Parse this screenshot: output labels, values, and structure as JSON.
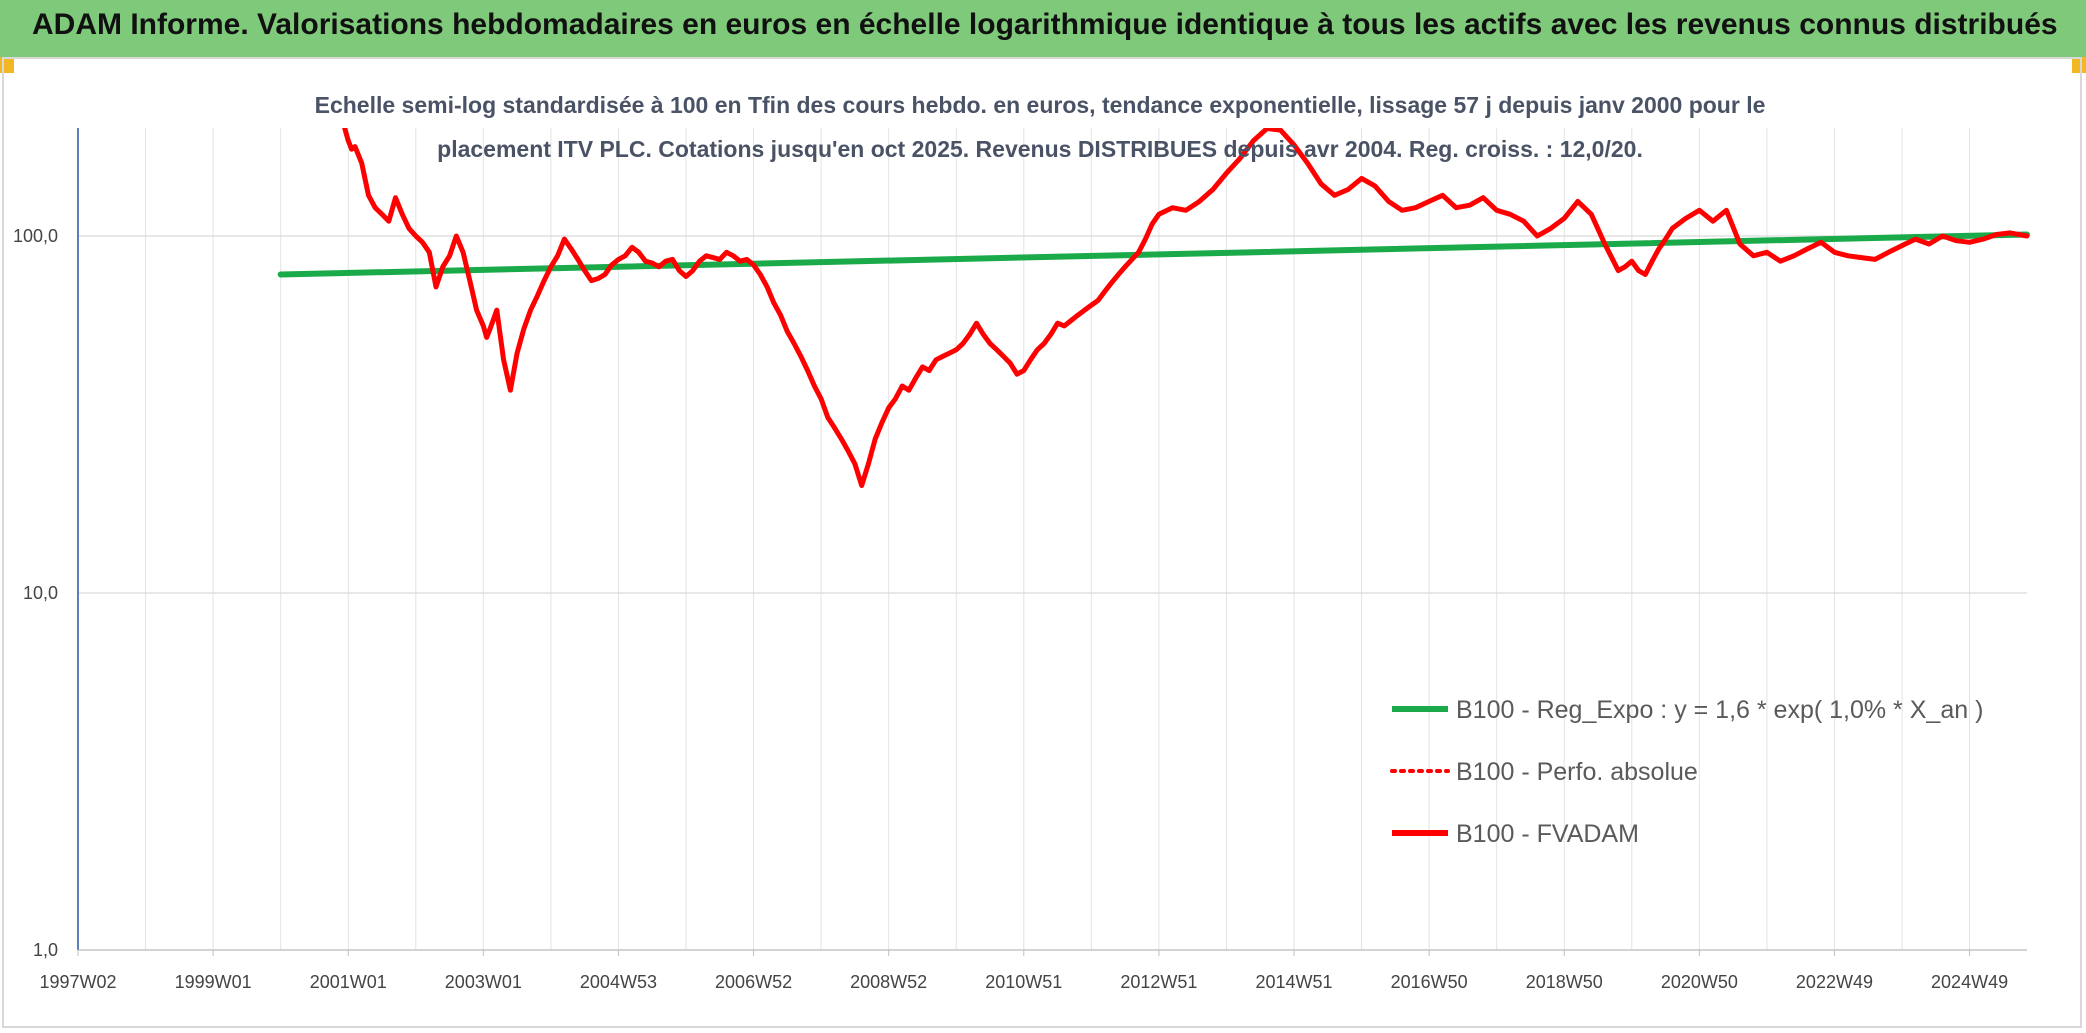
{
  "banner": {
    "title": "ADAM Informe. Valorisations hebdomadaires en euros en échelle logarithmique identique à tous les actifs avec les revenus connus distribués",
    "color": "#7fc97a"
  },
  "chart_data": {
    "type": "line",
    "title": "",
    "subtitle": [
      "Echelle semi-log standardisée à 100 en Tfin des cours hebdo. en euros, tendance exponentielle, lissage 57 j depuis janv 2000 pour le",
      "placement ITV PLC. Cotations jusqu'en oct 2025. Revenus DISTRIBUES depuis avr 2004. Reg. croiss. : 12,0/20."
    ],
    "xlabel": "",
    "ylabel": "",
    "y_scale": "log",
    "ylim": [
      1,
      200
    ],
    "y_ticks": [
      {
        "value": 1,
        "label": "1,0"
      },
      {
        "value": 10,
        "label": "10,0"
      },
      {
        "value": 100,
        "label": "100,0"
      }
    ],
    "x_range_years": [
      1997.0,
      2025.85
    ],
    "x_ticks": [
      {
        "year": 1997.0,
        "label": "1997W02"
      },
      {
        "year": 1999.0,
        "label": "1999W01"
      },
      {
        "year": 2001.0,
        "label": "2001W01"
      },
      {
        "year": 2003.0,
        "label": "2003W01"
      },
      {
        "year": 2005.0,
        "label": "2004W53"
      },
      {
        "year": 2007.0,
        "label": "2006W52"
      },
      {
        "year": 2009.0,
        "label": "2008W52"
      },
      {
        "year": 2011.0,
        "label": "2010W51"
      },
      {
        "year": 2013.0,
        "label": "2012W51"
      },
      {
        "year": 2015.0,
        "label": "2014W51"
      },
      {
        "year": 2017.0,
        "label": "2016W50"
      },
      {
        "year": 2019.0,
        "label": "2018W50"
      },
      {
        "year": 2021.0,
        "label": "2020W50"
      },
      {
        "year": 2023.0,
        "label": "2022W49"
      },
      {
        "year": 2025.0,
        "label": "2024W49"
      }
    ],
    "grid": true,
    "legend_position": "bottom-right",
    "series": [
      {
        "name": "B100 - Reg_Expo : y = 1,6 * exp( 1,0% *  X_an )",
        "color": "#1aaa4a",
        "style": "solid",
        "x": [
          2000.0,
          2025.85
        ],
        "y": [
          78,
          101
        ]
      },
      {
        "name": "B100 - Perfo. absolue",
        "color": "#ff0000",
        "style": "dotted",
        "x": [],
        "y": []
      },
      {
        "name": "B100 - FVADAM",
        "color": "#ff0000",
        "style": "solid",
        "x": [
          2000.95,
          2001.0,
          2001.05,
          2001.1,
          2001.2,
          2001.3,
          2001.4,
          2001.5,
          2001.6,
          2001.7,
          2001.8,
          2001.9,
          2002.0,
          2002.1,
          2002.2,
          2002.3,
          2002.4,
          2002.5,
          2002.6,
          2002.7,
          2002.8,
          2002.9,
          2003.0,
          2003.05,
          2003.1,
          2003.2,
          2003.3,
          2003.4,
          2003.5,
          2003.6,
          2003.7,
          2003.8,
          2003.9,
          2004.0,
          2004.1,
          2004.2,
          2004.3,
          2004.4,
          2004.5,
          2004.6,
          2004.7,
          2004.8,
          2004.9,
          2005.0,
          2005.1,
          2005.2,
          2005.3,
          2005.4,
          2005.5,
          2005.6,
          2005.7,
          2005.8,
          2005.9,
          2006.0,
          2006.1,
          2006.2,
          2006.3,
          2006.4,
          2006.5,
          2006.6,
          2006.7,
          2006.8,
          2006.9,
          2007.0,
          2007.1,
          2007.2,
          2007.3,
          2007.4,
          2007.5,
          2007.6,
          2007.7,
          2007.8,
          2007.9,
          2008.0,
          2008.1,
          2008.2,
          2008.3,
          2008.4,
          2008.5,
          2008.6,
          2008.7,
          2008.8,
          2008.9,
          2009.0,
          2009.1,
          2009.2,
          2009.3,
          2009.4,
          2009.5,
          2009.6,
          2009.7,
          2009.8,
          2009.9,
          2010.0,
          2010.1,
          2010.2,
          2010.3,
          2010.4,
          2010.5,
          2010.6,
          2010.7,
          2010.8,
          2010.9,
          2011.0,
          2011.1,
          2011.2,
          2011.3,
          2011.4,
          2011.5,
          2011.6,
          2011.7,
          2011.8,
          2011.9,
          2012.0,
          2012.1,
          2012.2,
          2012.3,
          2012.4,
          2012.5,
          2012.6,
          2012.7,
          2012.8,
          2012.9,
          2013.0,
          2013.2,
          2013.4,
          2013.6,
          2013.8,
          2014.0,
          2014.2,
          2014.4,
          2014.6,
          2014.8,
          2015.0,
          2015.2,
          2015.4,
          2015.6,
          2015.8,
          2016.0,
          2016.2,
          2016.4,
          2016.6,
          2016.8,
          2017.0,
          2017.2,
          2017.4,
          2017.6,
          2017.8,
          2018.0,
          2018.2,
          2018.4,
          2018.6,
          2018.8,
          2019.0,
          2019.2,
          2019.4,
          2019.6,
          2019.8,
          2019.9,
          2020.0,
          2020.1,
          2020.2,
          2020.3,
          2020.4,
          2020.5,
          2020.6,
          2020.8,
          2021.0,
          2021.2,
          2021.4,
          2021.6,
          2021.8,
          2022.0,
          2022.2,
          2022.4,
          2022.6,
          2022.8,
          2023.0,
          2023.2,
          2023.4,
          2023.6,
          2023.8,
          2024.0,
          2024.2,
          2024.4,
          2024.6,
          2024.8,
          2025.0,
          2025.2,
          2025.4,
          2025.6,
          2025.85
        ],
        "y": [
          200,
          185,
          175,
          178,
          160,
          130,
          120,
          115,
          110,
          128,
          115,
          105,
          100,
          96,
          90,
          72,
          82,
          88,
          100,
          90,
          75,
          62,
          56,
          52,
          55,
          62,
          45,
          37,
          47,
          55,
          62,
          68,
          75,
          82,
          88,
          98,
          92,
          86,
          80,
          75,
          76,
          78,
          83,
          86,
          88,
          93,
          90,
          85,
          84,
          82,
          85,
          86,
          80,
          77,
          80,
          85,
          88,
          87,
          86,
          90,
          88,
          85,
          86,
          83,
          78,
          72,
          65,
          60,
          54,
          50,
          46,
          42,
          38,
          35,
          31,
          29,
          27,
          25,
          23,
          20,
          23,
          27,
          30,
          33,
          35,
          38,
          37,
          40,
          43,
          42,
          45,
          46,
          47,
          48,
          50,
          53,
          57,
          53,
          50,
          48,
          46,
          44,
          41,
          42,
          45,
          48,
          50,
          53,
          57,
          56,
          58,
          60,
          62,
          64,
          66,
          70,
          74,
          78,
          82,
          86,
          90,
          98,
          108,
          115,
          120,
          118,
          125,
          135,
          150,
          165,
          185,
          200,
          198,
          180,
          160,
          140,
          130,
          135,
          145,
          138,
          125,
          118,
          120,
          125,
          130,
          120,
          122,
          128,
          118,
          115,
          110,
          100,
          105,
          112,
          125,
          115,
          95,
          80,
          82,
          85,
          80,
          78,
          85,
          92,
          98,
          105,
          112,
          118,
          110,
          118,
          95,
          88,
          90,
          85,
          88,
          92,
          96,
          90,
          88,
          87,
          86,
          90,
          94,
          98,
          95,
          100,
          97,
          96,
          98,
          101,
          102,
          100
        ]
      }
    ]
  }
}
